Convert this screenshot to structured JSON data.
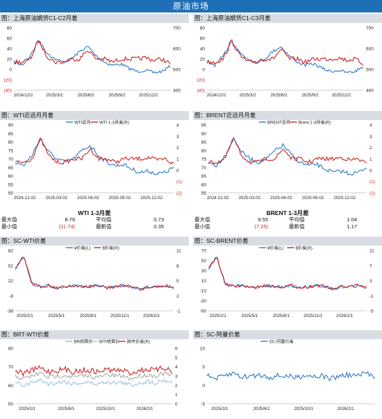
{
  "header": {
    "title": "原油市场"
  },
  "panels": [
    {
      "id": "p1",
      "title": "图：上海原油期货C1-C2月差"
    },
    {
      "id": "p2",
      "title": "图：上海原油期货C1-C3月差"
    },
    {
      "id": "p3",
      "title": "图：WTI近远月月差"
    },
    {
      "id": "p4",
      "title": "图：BRENT近远月月差"
    },
    {
      "id": "p5",
      "title": "图：SC-WTI价差"
    },
    {
      "id": "p6",
      "title": "图：SC-BRENT价差"
    },
    {
      "id": "p7",
      "title": "图：BRT-WTI价差"
    },
    {
      "id": "p8",
      "title": "图：SC-阿曼价差"
    }
  ],
  "tables": {
    "wti": {
      "title": "WTI 1-3月差",
      "rows": [
        [
          "最大值",
          "8.79",
          "平均值",
          "0.73"
        ],
        [
          "最小值",
          "(11.74)",
          "最新值",
          "0.35"
        ]
      ]
    },
    "brent": {
      "title": "BRENT 1-3月差",
      "rows": [
        [
          "最大值",
          "9.55",
          "平均值",
          "1.04"
        ],
        [
          "最小值",
          "(7.25)",
          "最新值",
          "1.17"
        ]
      ]
    }
  },
  "colors": {
    "banner": "#1f6fb8",
    "blue": "#2e78c4",
    "red": "#cc1f1f",
    "gray": "#a9a9a9",
    "lightblue": "#9cc0e6",
    "neg": "#cc1f1f"
  },
  "chart_data": [
    {
      "type": "line",
      "panel": "p1",
      "series": [],
      "x_ticks": [
        "2024/12/2",
        "2025/3/2",
        "2025/6/2",
        "2025/9/2",
        "2025/12/2"
      ],
      "y_left": [
        "80",
        "60",
        "40",
        "20",
        "0",
        "(20)",
        "(40)"
      ],
      "y_right": [
        "700",
        "600",
        "500",
        "400"
      ],
      "ylim_left": [
        -40,
        80
      ],
      "ylim_right": [
        400,
        700
      ]
    },
    {
      "type": "line",
      "panel": "p2",
      "series": [],
      "x_ticks": [
        "2024/12/2",
        "2025/3/2",
        "2025/6/2",
        "2025/9/2",
        "2025/12/2"
      ],
      "y_left": [
        "80",
        "60",
        "40",
        "20",
        "0",
        "(20)",
        "(40)"
      ],
      "y_right": [
        "700",
        "600",
        "500",
        "400"
      ],
      "ylim_left": [
        -40,
        80
      ],
      "ylim_right": [
        400,
        700
      ]
    },
    {
      "type": "line",
      "panel": "p3",
      "series": [
        {
          "name": "WTI近月"
        },
        {
          "name": "WTI 1-3月差(R)"
        }
      ],
      "x_ticks": [
        "2024-12-02",
        "2025-03-02",
        "2025-06-02",
        "2025-09-02",
        "2025-12-02"
      ],
      "y_left": [
        "90",
        "85",
        "80",
        "75",
        "70",
        "65",
        "60",
        "55",
        "50"
      ],
      "y_right": [
        "4",
        "3",
        "2",
        "1",
        "0",
        "(1)",
        "(2)"
      ],
      "ylim_left": [
        50,
        90
      ],
      "ylim_right": [
        -2,
        4
      ]
    },
    {
      "type": "line",
      "panel": "p4",
      "series": [
        {
          "name": "BRENT近月"
        },
        {
          "name": "Brent 1-3月差(R)"
        }
      ],
      "x_ticks": [
        "2024-12-02",
        "2025-03-02",
        "2025-06-02",
        "2025-09-02",
        "2025-12-02"
      ],
      "y_left": [
        "95",
        "90",
        "85",
        "80",
        "75",
        "70",
        "65",
        "60",
        "55"
      ],
      "y_right": [
        "4",
        "3",
        "2",
        "1",
        "0",
        "(1)",
        "(1)"
      ],
      "ylim_left": [
        55,
        95
      ],
      "ylim_right": [
        -2,
        4
      ]
    },
    {
      "type": "line",
      "panel": "p5",
      "series": [
        {
          "name": "¥价差(L)"
        },
        {
          "name": "$价差(R)"
        }
      ],
      "x_ticks": [
        "2025/2/1",
        "2025/5/1",
        "2025/8/1",
        "2025/11/1",
        "2026/2/1"
      ],
      "y_left": [
        "82",
        "52",
        "22",
        "-8",
        "-38"
      ],
      "y_right": [
        "11",
        "8",
        "5",
        "2",
        "-1"
      ],
      "ylim_left": [
        -38,
        100
      ],
      "ylim_right": [
        -1,
        13
      ]
    },
    {
      "type": "line",
      "panel": "p6",
      "series": [
        {
          "name": "¥价差(L)"
        },
        {
          "name": "$价差(R)"
        }
      ],
      "x_ticks": [
        "2025/2/1",
        "2025/5/1",
        "2025/8/1",
        "2025/11/1",
        "2026/2/1"
      ],
      "y_left": [
        "70",
        "50",
        "30",
        "10",
        "-10",
        "-30",
        "-50"
      ],
      "y_right": [
        "11",
        "7",
        "3",
        "-1",
        "-5"
      ],
      "ylim_left": [
        -50,
        70
      ],
      "ylim_right": [
        -7,
        11
      ]
    },
    {
      "type": "line",
      "panel": "p7",
      "series": [
        {
          "name": "BR结算价"
        },
        {
          "name": "WTI结算价"
        },
        {
          "name": "跨市价差(R)"
        }
      ],
      "x_ticks": [
        "2025/2/1",
        "2025/6/1",
        "2025/10/1",
        "2026/2/1"
      ],
      "y_left": [
        "80",
        "70",
        "60",
        "50"
      ],
      "y_right": [
        "6",
        "5",
        "4",
        "3",
        "2",
        "1",
        "0"
      ],
      "ylim_left": [
        50,
        80
      ],
      "ylim_right": [
        0,
        6
      ]
    },
    {
      "type": "line",
      "panel": "p8",
      "series": [
        {
          "name": "SC-阿曼价差"
        }
      ],
      "x_ticks": [
        "2025/2/1",
        "2025/6/1",
        "2025/10/1",
        "2026/2/1"
      ],
      "y_left": [
        "10",
        "5",
        "0",
        "-5"
      ],
      "y_right": [],
      "ylim_left": [
        -5,
        10
      ]
    }
  ]
}
